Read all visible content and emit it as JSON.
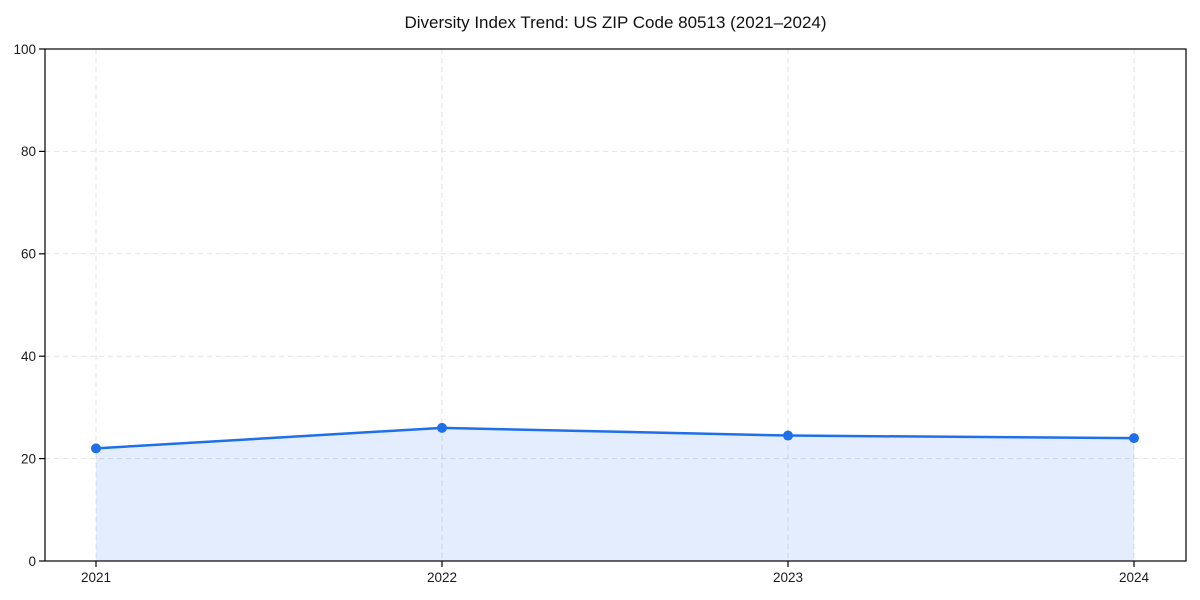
{
  "chart_data": {
    "type": "area",
    "title": "Diversity Index Trend: US ZIP Code 80513 (2021–2024)",
    "categories": [
      "2021",
      "2022",
      "2023",
      "2024"
    ],
    "series": [
      {
        "name": "Diversity Index",
        "values": [
          22,
          26,
          24.5,
          24
        ]
      }
    ],
    "xlabel": "",
    "ylabel": "",
    "ylim": [
      0,
      100
    ],
    "yticks": [
      0,
      20,
      40,
      60,
      80,
      100
    ],
    "grid": true,
    "grid_line_style": "dashed",
    "legend_position": "none",
    "marker": "circle",
    "colors": {
      "line": "#1f6feb",
      "marker": "#1f6feb",
      "fill_rgba": "rgba(31,111,235,0.12)",
      "grid": "#e2e2e2",
      "axis": "#000000",
      "tick_text": "#1a1a1a",
      "title_text": "#111111",
      "background": "#ffffff"
    }
  }
}
